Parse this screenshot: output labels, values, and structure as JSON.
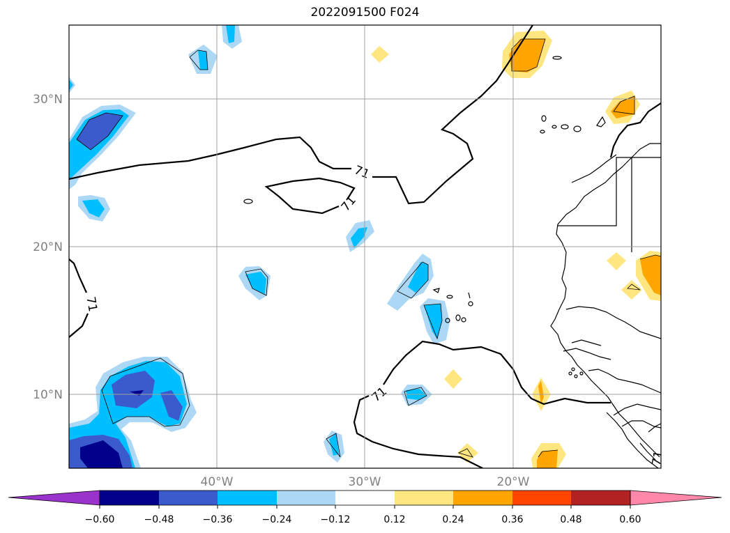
{
  "title": "2022091500 F024",
  "map": {
    "lat_labels": [
      "30°N",
      "20°N",
      "10°N"
    ],
    "lon_labels": [
      "40°W",
      "30°W",
      "20°W"
    ],
    "contour_label": "71",
    "label_color": "#808080"
  },
  "colorbar": {
    "ticks": [
      "−0.60",
      "−0.48",
      "−0.36",
      "−0.24",
      "−0.12",
      "0.12",
      "0.24",
      "0.36",
      "0.48",
      "0.60"
    ],
    "under_color": "#9933cc",
    "over_color": "#ff88aa",
    "colors": [
      "#00008b",
      "#3b5bcc",
      "#00bfff",
      "#add8f5",
      "#ffffff",
      "#ffe680",
      "#ffa500",
      "#ff4500",
      "#b22222"
    ]
  }
}
